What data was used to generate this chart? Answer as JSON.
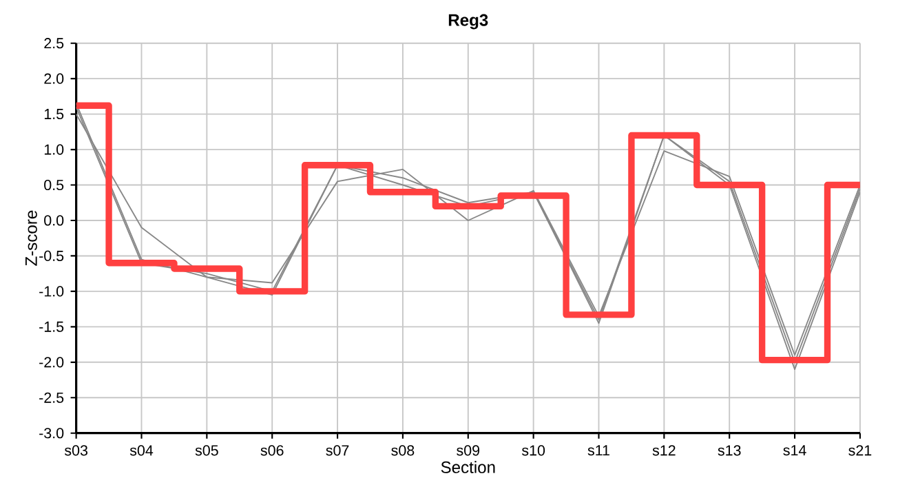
{
  "chart_data": {
    "type": "line",
    "title": "Reg3",
    "xlabel": "Section",
    "ylabel": "Z-score",
    "categories": [
      "s03",
      "s04",
      "s05",
      "s06",
      "s07",
      "s08",
      "s09",
      "s10",
      "s11",
      "s12",
      "s13",
      "s14",
      "s21"
    ],
    "series": [
      {
        "color": "#888888",
        "values": [
          1.65,
          -0.55,
          -0.8,
          -1.05,
          0.78,
          0.6,
          0.25,
          0.4,
          -1.45,
          1.2,
          0.5,
          -2.1,
          0.4
        ]
      },
      {
        "color": "#888888",
        "values": [
          1.6,
          -0.6,
          -0.75,
          -1.0,
          0.78,
          0.5,
          0.2,
          0.4,
          -1.4,
          1.2,
          0.55,
          -2.0,
          0.45
        ]
      },
      {
        "color": "#888888",
        "values": [
          1.5,
          -0.1,
          -0.8,
          -0.88,
          0.55,
          0.72,
          0.0,
          0.42,
          -1.35,
          0.98,
          0.62,
          -1.9,
          0.5
        ]
      },
      {
        "type": "step",
        "color": "#ff4040",
        "values": [
          1.62,
          -0.6,
          -0.68,
          -1.0,
          0.78,
          0.4,
          0.2,
          0.35,
          -1.33,
          1.2,
          0.5,
          -1.97,
          0.5
        ]
      }
    ],
    "ylim": [
      -3.0,
      2.5
    ],
    "yticks": [
      {
        "value": -3.0,
        "label": "-3.0"
      },
      {
        "value": -2.5,
        "label": "-2.5"
      },
      {
        "value": -2.0,
        "label": "-2.0"
      },
      {
        "value": -1.5,
        "label": "-1.5"
      },
      {
        "value": -1.0,
        "label": "-1.0"
      },
      {
        "value": -0.5,
        "label": "-0.5"
      },
      {
        "value": 0.0,
        "label": "0.0"
      },
      {
        "value": 0.5,
        "label": "0.5"
      },
      {
        "value": 1.0,
        "label": "1.0"
      },
      {
        "value": 1.5,
        "label": "1.5"
      },
      {
        "value": 2.0,
        "label": "2.0"
      },
      {
        "value": 2.5,
        "label": "2.5"
      }
    ],
    "grid": true
  }
}
